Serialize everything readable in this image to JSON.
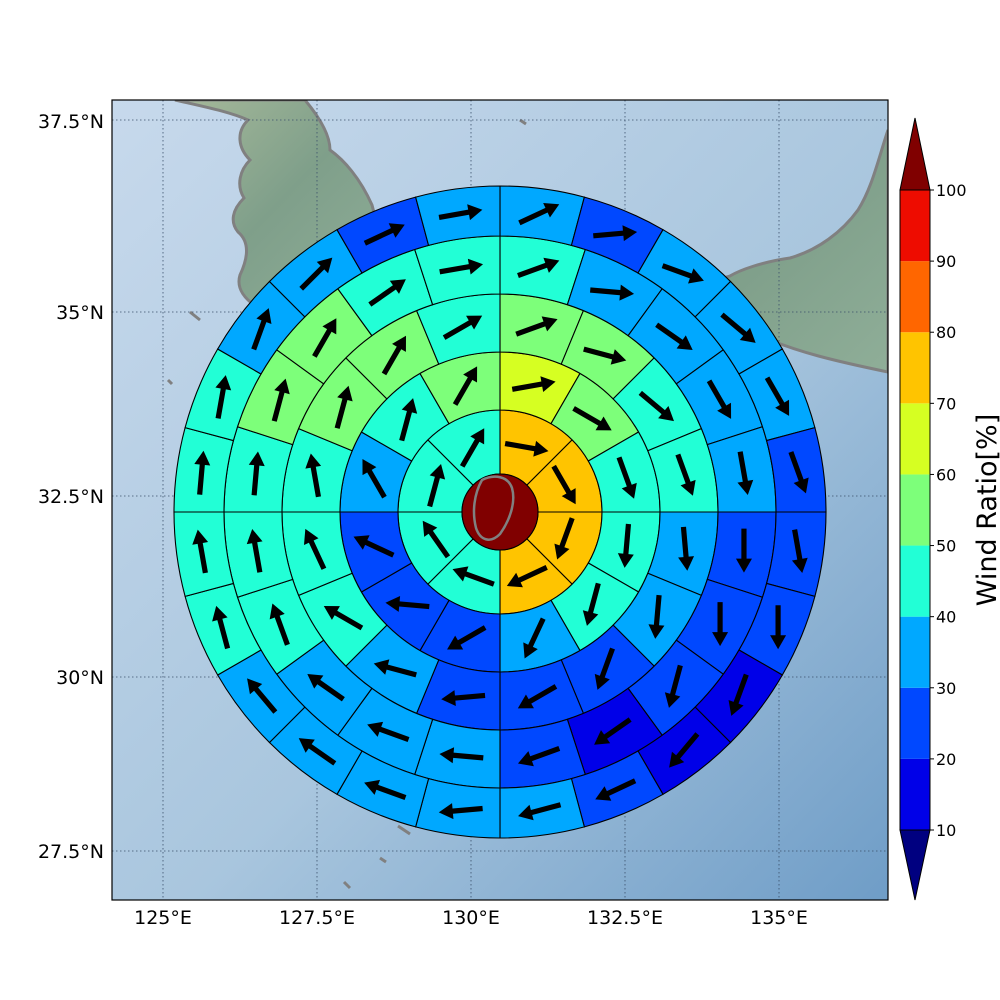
{
  "map": {
    "lon_ticks": [
      "125°E",
      "127.5°E",
      "130°E",
      "132.5°E",
      "135°E"
    ],
    "lat_ticks": [
      "37.5°N",
      "35°N",
      "32.5°N",
      "30°N",
      "27.5°N"
    ],
    "colors": {
      "land": "#7f9f8a",
      "sea": "#a9c6de",
      "coast": "#808080",
      "grid": "#3a4f6a"
    }
  },
  "colorbar": {
    "label": "Wind Ratio[%]",
    "ticks": [
      "10",
      "20",
      "30",
      "40",
      "50",
      "60",
      "70",
      "80",
      "90",
      "100"
    ],
    "colors": [
      "#000080",
      "#0000e8",
      "#0048ff",
      "#00a8ff",
      "#22ffd6",
      "#7dff7a",
      "#d6ff22",
      "#ffc400",
      "#ff6600",
      "#ee0c00",
      "#800000"
    ]
  },
  "chart_data": {
    "type": "polar-sector-map",
    "center_value": 100,
    "rings_inner_to_outer": [
      {
        "values": [
          75,
          75,
          75,
          75,
          45,
          45,
          45,
          45
        ]
      },
      {
        "values": [
          65,
          55,
          45,
          45,
          45,
          35,
          25,
          25,
          25,
          35,
          45,
          55
        ]
      },
      {
        "values": [
          55,
          55,
          45,
          45,
          35,
          35,
          25,
          25,
          25,
          35,
          45,
          45,
          45,
          55,
          55,
          45
        ]
      },
      {
        "values": [
          45,
          35,
          35,
          35,
          35,
          25,
          25,
          25,
          15,
          25,
          35,
          35,
          35,
          45,
          45,
          45,
          55,
          55,
          45,
          45
        ]
      },
      {
        "values": [
          35,
          25,
          35,
          35,
          35,
          25,
          25,
          25,
          15,
          15,
          25,
          35,
          35,
          35,
          35,
          35,
          45,
          45,
          45,
          45,
          35,
          35,
          25,
          35
        ]
      }
    ],
    "arrow_directions_deg_from_north_inner_to_outer": [
      [
        100,
        150,
        200,
        245,
        290,
        325,
        15,
        30
      ],
      [
        80,
        120,
        160,
        185,
        195,
        205,
        240,
        275,
        295,
        330,
        15,
        30
      ],
      [
        70,
        105,
        130,
        160,
        175,
        185,
        200,
        240,
        265,
        285,
        300,
        335,
        350,
        15,
        30,
        60
      ],
      [
        70,
        95,
        125,
        150,
        170,
        180,
        180,
        195,
        235,
        250,
        275,
        290,
        305,
        340,
        350,
        5,
        15,
        30,
        55,
        80
      ],
      [
        65,
        85,
        110,
        130,
        150,
        160,
        170,
        180,
        200,
        220,
        245,
        255,
        265,
        290,
        305,
        320,
        345,
        350,
        5,
        10,
        20,
        45,
        65,
        80
      ]
    ]
  }
}
